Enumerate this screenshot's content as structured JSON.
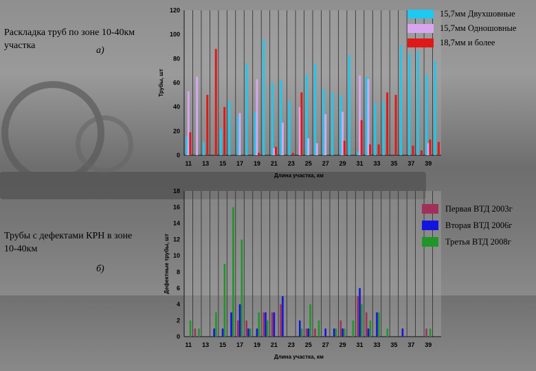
{
  "chart_data": [
    {
      "type": "bar",
      "title": "Раскладка труб по зоне 10-40км участка",
      "panel_label": "а)",
      "xlabel": "Длина участка, км",
      "ylabel": "Трубы, шт",
      "ylim": [
        0,
        120
      ],
      "yticks": [
        0,
        20,
        40,
        60,
        80,
        100,
        120
      ],
      "xticks": [
        11,
        13,
        15,
        17,
        19,
        21,
        23,
        25,
        27,
        29,
        31,
        33,
        35,
        37,
        39
      ],
      "categories": [
        11,
        12,
        13,
        14,
        15,
        16,
        17,
        18,
        19,
        20,
        21,
        22,
        23,
        24,
        25,
        26,
        27,
        28,
        29,
        30,
        31,
        32,
        33,
        34,
        35,
        36,
        37,
        38,
        39,
        40
      ],
      "series": [
        {
          "name": "15,7мм Двухшовные",
          "color": "#1ec8f0",
          "values": [
            16,
            0,
            11,
            0,
            22,
            45,
            33,
            76,
            36,
            96,
            60,
            62,
            45,
            0,
            67,
            76,
            55,
            52,
            50,
            83,
            3,
            65,
            43,
            45,
            0,
            91,
            84,
            86,
            67,
            78
          ]
        },
        {
          "name": "15,7мм Одношовные",
          "color": "#d8a6f0",
          "values": [
            53,
            65,
            0,
            0,
            0,
            0,
            35,
            0,
            63,
            0,
            6,
            27,
            0,
            40,
            14,
            10,
            34,
            0,
            36,
            0,
            66,
            63,
            0,
            0,
            0,
            0,
            0,
            0,
            10,
            0
          ]
        },
        {
          "name": "18,7мм и более",
          "color": "#e01818",
          "values": [
            19,
            0,
            50,
            88,
            40,
            0,
            0,
            0,
            2,
            0,
            7,
            0,
            2,
            52,
            0,
            0,
            0,
            0,
            12,
            0,
            29,
            9,
            9,
            52,
            50,
            0,
            8,
            4,
            13,
            11
          ]
        }
      ],
      "legend": "top-right"
    },
    {
      "type": "bar",
      "title": "Трубы с дефектами КРН в зоне 10-40км",
      "panel_label": "б)",
      "xlabel": "Длина участка, км",
      "ylabel": "Дефектные трубы, шт",
      "ylim": [
        0,
        18
      ],
      "yticks": [
        0,
        2,
        4,
        6,
        8,
        10,
        12,
        14,
        16,
        18
      ],
      "xticks": [
        11,
        13,
        15,
        17,
        19,
        21,
        23,
        25,
        27,
        29,
        31,
        33,
        35,
        37,
        39
      ],
      "categories": [
        11,
        12,
        13,
        14,
        15,
        16,
        17,
        18,
        19,
        20,
        21,
        22,
        23,
        24,
        25,
        26,
        27,
        28,
        29,
        30,
        31,
        32,
        33,
        34,
        35,
        36,
        37,
        38,
        39,
        40
      ],
      "series": [
        {
          "name": "Первая ВТД 2003г",
          "color": "#a0305a",
          "values": [
            0,
            1,
            0,
            0,
            0,
            0,
            2,
            2,
            0,
            3,
            3,
            4,
            0,
            0,
            1,
            1,
            0,
            0,
            2,
            0,
            5,
            3,
            0,
            0,
            0,
            0,
            0,
            0,
            1,
            0
          ]
        },
        {
          "name": "Вторая ВТД 2006г",
          "color": "#1414e0",
          "values": [
            0,
            0,
            0,
            1,
            1,
            3,
            4,
            1,
            1,
            3,
            3,
            5,
            0,
            2,
            1,
            0,
            1,
            1,
            1,
            0,
            6,
            1,
            3,
            0,
            0,
            1,
            0,
            0,
            0,
            0
          ]
        },
        {
          "name": "Третья ВТД 2008г",
          "color": "#1e9628",
          "values": [
            2,
            1,
            0,
            3,
            9,
            16,
            12,
            1,
            3,
            2,
            0,
            0,
            0,
            1,
            4,
            2,
            0,
            1,
            1,
            2,
            4,
            2,
            3,
            1,
            0,
            0,
            0,
            0,
            1,
            0
          ]
        }
      ],
      "legend": "right"
    }
  ]
}
